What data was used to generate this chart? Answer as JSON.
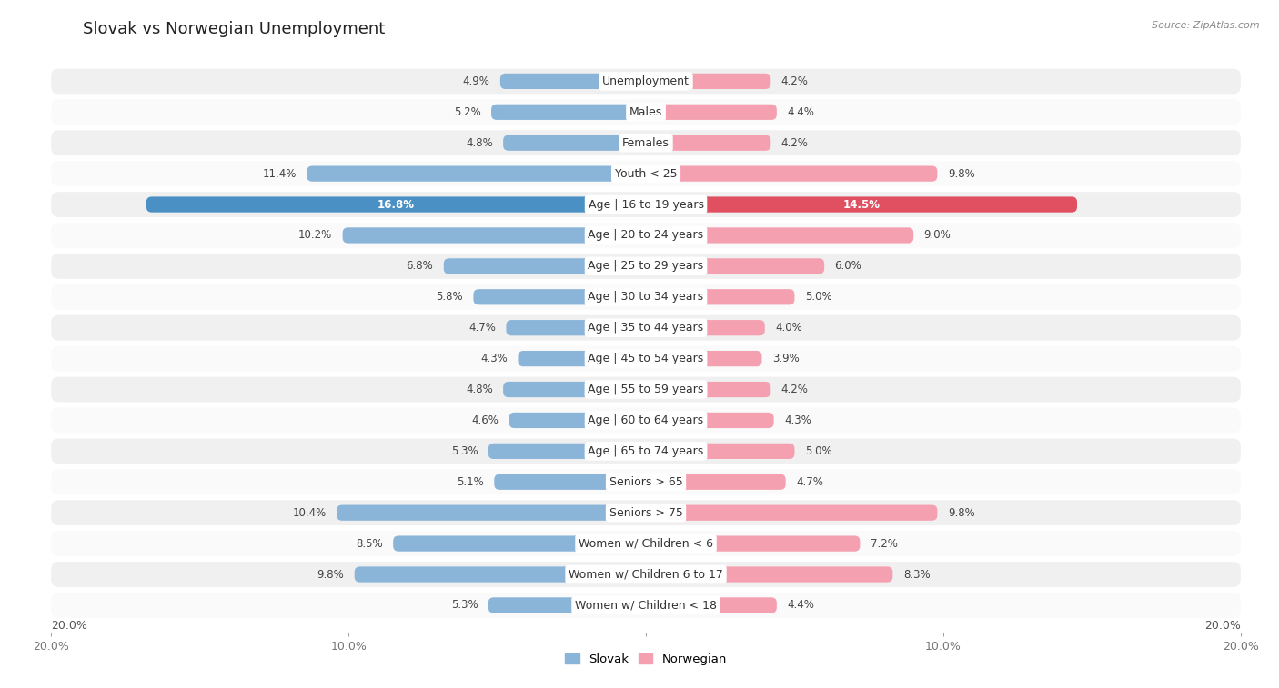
{
  "title": "Slovak vs Norwegian Unemployment",
  "source": "Source: ZipAtlas.com",
  "categories": [
    "Unemployment",
    "Males",
    "Females",
    "Youth < 25",
    "Age | 16 to 19 years",
    "Age | 20 to 24 years",
    "Age | 25 to 29 years",
    "Age | 30 to 34 years",
    "Age | 35 to 44 years",
    "Age | 45 to 54 years",
    "Age | 55 to 59 years",
    "Age | 60 to 64 years",
    "Age | 65 to 74 years",
    "Seniors > 65",
    "Seniors > 75",
    "Women w/ Children < 6",
    "Women w/ Children 6 to 17",
    "Women w/ Children < 18"
  ],
  "slovak": [
    4.9,
    5.2,
    4.8,
    11.4,
    16.8,
    10.2,
    6.8,
    5.8,
    4.7,
    4.3,
    4.8,
    4.6,
    5.3,
    5.1,
    10.4,
    8.5,
    9.8,
    5.3
  ],
  "norwegian": [
    4.2,
    4.4,
    4.2,
    9.8,
    14.5,
    9.0,
    6.0,
    5.0,
    4.0,
    3.9,
    4.2,
    4.3,
    5.0,
    4.7,
    9.8,
    7.2,
    8.3,
    4.4
  ],
  "slovak_color": "#8ab4d8",
  "norwegian_color": "#f4a0b0",
  "slovak_highlight_color": "#4a90c4",
  "norwegian_highlight_color": "#e05060",
  "row_bg_light": "#f0f0f0",
  "row_bg_white": "#fafafa",
  "max_val": 20.0,
  "legend_slovak": "Slovak",
  "legend_norwegian": "Norwegian",
  "title_fontsize": 13,
  "label_fontsize": 9,
  "value_fontsize": 8.5
}
